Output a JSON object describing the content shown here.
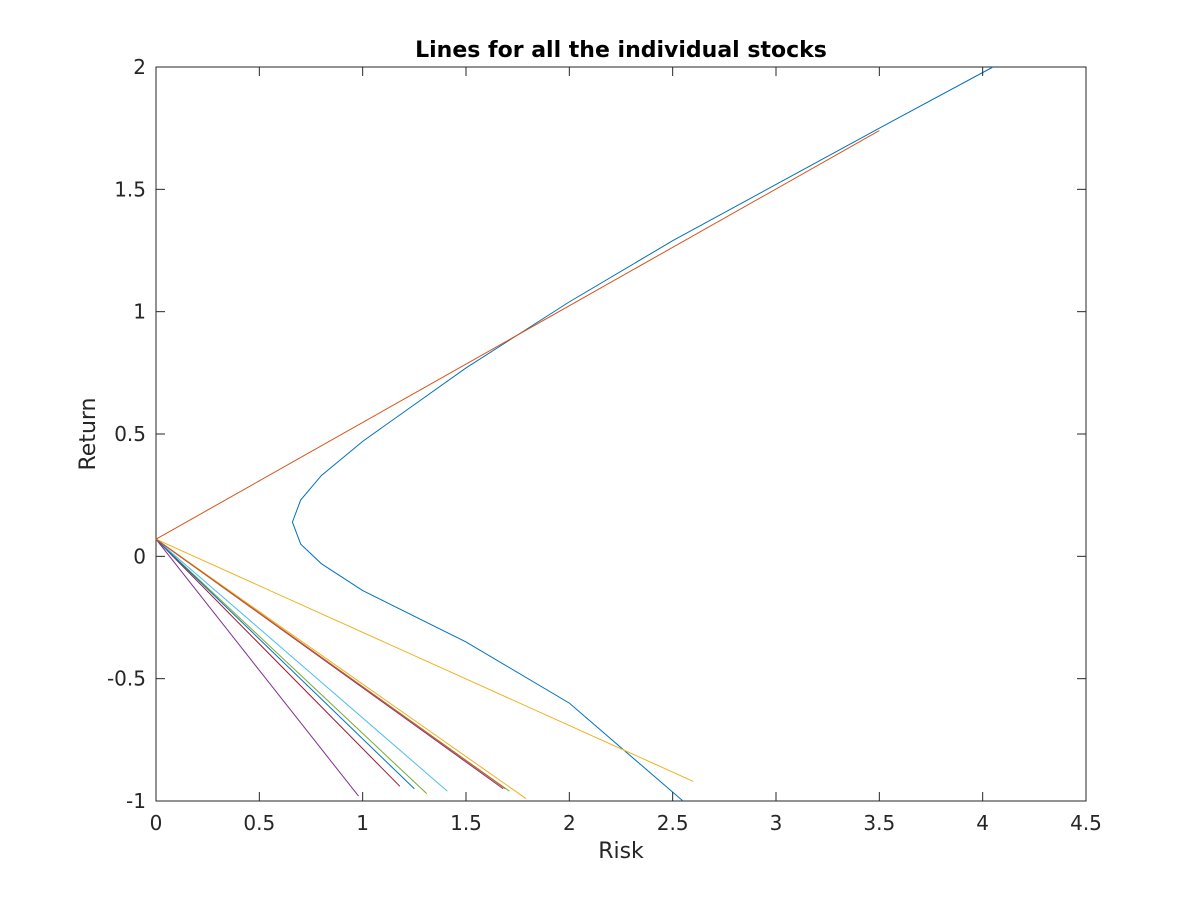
{
  "chart_data": {
    "type": "line",
    "title": "Lines for all the individual stocks",
    "xlabel": "Risk",
    "ylabel": "Return",
    "xlim": [
      0,
      4.5
    ],
    "ylim": [
      -1,
      2
    ],
    "xticks": [
      0,
      0.5,
      1,
      1.5,
      2,
      2.5,
      3,
      3.5,
      4,
      4.5
    ],
    "xtick_labels": [
      "0",
      "0.5",
      "1",
      "1.5",
      "2",
      "2.5",
      "3",
      "3.5",
      "4",
      "4.5"
    ],
    "yticks": [
      -1,
      -0.5,
      0,
      0.5,
      1,
      1.5,
      2
    ],
    "ytick_labels": [
      "-1",
      "-0.5",
      "0",
      "0.5",
      "1",
      "1.5",
      "2"
    ],
    "grid": false,
    "series": [
      {
        "color": "#0072BD",
        "kind": "frontier-curve",
        "x": [
          4.05,
          3.5,
          3.0,
          2.5,
          2.0,
          1.5,
          1.0,
          0.8,
          0.7,
          0.66,
          0.7,
          0.8,
          1.0,
          1.5,
          2.0,
          2.55
        ],
        "y": [
          2.0,
          1.75,
          1.52,
          1.29,
          1.04,
          0.77,
          0.47,
          0.33,
          0.23,
          0.14,
          0.05,
          -0.03,
          -0.14,
          -0.35,
          -0.6,
          -1.0
        ]
      },
      {
        "color": "#D95319",
        "x": [
          0,
          3.5
        ],
        "y": [
          0.07,
          1.74
        ]
      },
      {
        "color": "#EDB120",
        "x": [
          0,
          2.6
        ],
        "y": [
          0.07,
          -0.92
        ]
      },
      {
        "color": "#EDB120",
        "x": [
          0,
          1.79
        ],
        "y": [
          0.07,
          -0.99
        ]
      },
      {
        "color": "#7E2F8E",
        "x": [
          0,
          0.98
        ],
        "y": [
          0.07,
          -0.98
        ]
      },
      {
        "color": "#7E2F8E",
        "x": [
          0,
          1.68
        ],
        "y": [
          0.07,
          -0.95
        ]
      },
      {
        "color": "#77AC30",
        "x": [
          0,
          1.31
        ],
        "y": [
          0.07,
          -0.97
        ]
      },
      {
        "color": "#77AC30",
        "x": [
          0,
          1.71
        ],
        "y": [
          0.07,
          -0.96
        ]
      },
      {
        "color": "#4DBEEE",
        "x": [
          0,
          1.41
        ],
        "y": [
          0.07,
          -0.96
        ]
      },
      {
        "color": "#A2142F",
        "x": [
          0,
          1.18
        ],
        "y": [
          0.07,
          -0.94
        ]
      },
      {
        "color": "#0072BD",
        "x": [
          0,
          1.25
        ],
        "y": [
          0.07,
          -0.95
        ]
      },
      {
        "color": "#D95319",
        "x": [
          0,
          1.69
        ],
        "y": [
          0.07,
          -0.95
        ]
      }
    ]
  }
}
